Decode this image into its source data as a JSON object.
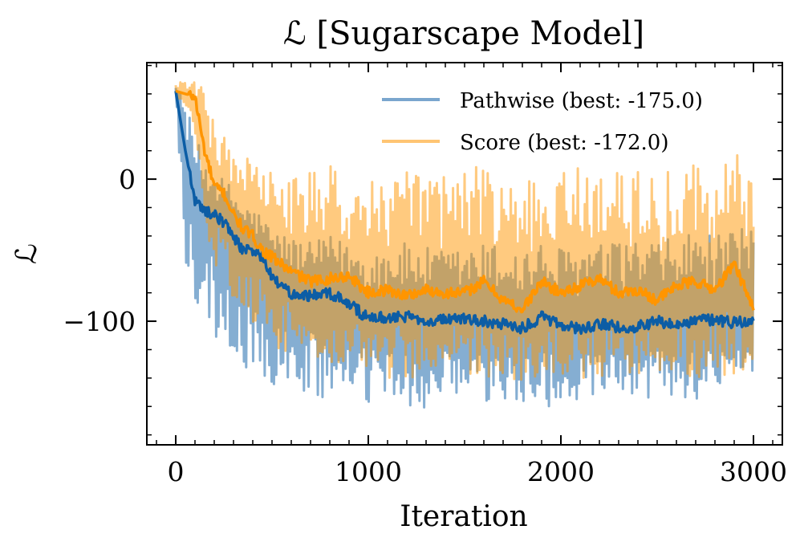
{
  "chart_data": {
    "type": "line",
    "title": "ℒ [Sugarscape Model]",
    "xlabel": "Iteration",
    "ylabel": "ℒ",
    "xlim": [
      -150,
      3150
    ],
    "ylim": [
      -187,
      82
    ],
    "xticks": [
      0,
      1000,
      2000,
      3000
    ],
    "xtick_labels": [
      "0",
      "1000",
      "2000",
      "3000"
    ],
    "yticks": [
      0,
      -100
    ],
    "ytick_labels": [
      "0",
      "−100"
    ],
    "legend_position": "top-right",
    "series": [
      {
        "name": "Pathwise (best: -175.0)",
        "color": "#0C5DA5",
        "raw_alpha": 0.5,
        "x": [
          0,
          50,
          100,
          150,
          200,
          250,
          300,
          350,
          400,
          450,
          500,
          600,
          700,
          800,
          900,
          1000,
          1100,
          1200,
          1300,
          1400,
          1500,
          1600,
          1700,
          1800,
          1900,
          2000,
          2100,
          2200,
          2300,
          2400,
          2500,
          2600,
          2700,
          2800,
          2900,
          3000
        ],
        "smoothed": [
          62,
          20,
          -15,
          -22,
          -25,
          -30,
          -40,
          -50,
          -50,
          -55,
          -70,
          -80,
          -82,
          -80,
          -88,
          -98,
          -97,
          -97,
          -99,
          -99,
          -98,
          -100,
          -102,
          -105,
          -97,
          -103,
          -105,
          -102,
          -104,
          -104,
          -100,
          -102,
          -100,
          -99,
          -101,
          -100
        ],
        "band_low": [
          55,
          -70,
          -85,
          -100,
          -110,
          -125,
          -135,
          -135,
          -140,
          -145,
          -148,
          -150,
          -155,
          -158,
          -160,
          -160,
          -160,
          -162,
          -162,
          -160,
          -160,
          -160,
          -160,
          -160,
          -160,
          -160,
          -160,
          -158,
          -158,
          -156,
          -155,
          -155,
          -155,
          -150,
          -150,
          -148
        ],
        "band_high": [
          68,
          55,
          30,
          15,
          5,
          0,
          -5,
          -15,
          -20,
          -25,
          -35,
          -40,
          -45,
          -40,
          -45,
          -50,
          -45,
          -45,
          -48,
          -50,
          -48,
          -45,
          -45,
          -48,
          -45,
          -48,
          -45,
          -45,
          -45,
          -40,
          -45,
          -40,
          -35,
          -40,
          -38,
          -30
        ]
      },
      {
        "name": "Score (best: -172.0)",
        "color": "#FF9500",
        "raw_alpha": 0.5,
        "x": [
          0,
          50,
          100,
          150,
          200,
          250,
          300,
          350,
          400,
          450,
          500,
          600,
          700,
          800,
          900,
          1000,
          1100,
          1200,
          1300,
          1400,
          1500,
          1600,
          1700,
          1800,
          1900,
          2000,
          2100,
          2200,
          2300,
          2400,
          2500,
          2600,
          2700,
          2800,
          2900,
          3000
        ],
        "smoothed": [
          62,
          60,
          58,
          20,
          -5,
          -10,
          -25,
          -35,
          -40,
          -50,
          -55,
          -65,
          -72,
          -70,
          -68,
          -80,
          -78,
          -82,
          -78,
          -80,
          -80,
          -72,
          -85,
          -92,
          -72,
          -80,
          -75,
          -70,
          -80,
          -78,
          -85,
          -75,
          -72,
          -78,
          -60,
          -90
        ],
        "band_low": [
          58,
          50,
          25,
          -30,
          -60,
          -75,
          -85,
          -95,
          -105,
          -110,
          -118,
          -125,
          -130,
          -132,
          -135,
          -140,
          -140,
          -140,
          -140,
          -142,
          -140,
          -140,
          -140,
          -142,
          -140,
          -140,
          -140,
          -140,
          -140,
          -140,
          -140,
          -140,
          -140,
          -140,
          -140,
          -140
        ],
        "band_high": [
          68,
          69,
          68,
          65,
          40,
          30,
          25,
          20,
          15,
          10,
          5,
          0,
          5,
          10,
          0,
          0,
          5,
          5,
          10,
          5,
          10,
          10,
          0,
          -5,
          10,
          5,
          10,
          15,
          5,
          10,
          0,
          10,
          15,
          10,
          20,
          5
        ]
      }
    ]
  }
}
